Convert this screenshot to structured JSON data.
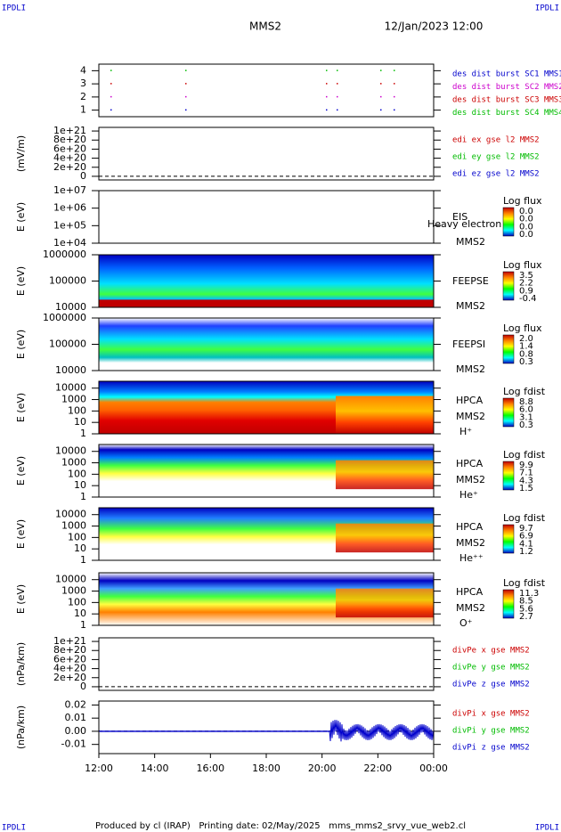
{
  "title": "MMS2",
  "date": "12/Jan/2023 12:00",
  "corner_labels": [
    "IPDLI",
    "IPDLI",
    "IPDLI",
    "IPDLI"
  ],
  "footer": "Produced by cl (IRAP)   Printing date: 02/May/2025   mms_mms2_srvy_vue_web2.cl",
  "chart_data": [
    {
      "type": "dots",
      "ylim": [
        0.5,
        4.5
      ],
      "yticks": [
        1,
        2,
        3,
        4
      ],
      "series": [
        {
          "name": "des dist burst SC1 MMS1",
          "color": "#0000cc"
        },
        {
          "name": "des dist burst SC2 MMS2",
          "color": "#cc00cc"
        },
        {
          "name": "des dist burst SC3 MMS3",
          "color": "#cc0000"
        },
        {
          "name": "des dist burst SC4 MMS4",
          "color": "#00bb00"
        }
      ]
    },
    {
      "type": "line",
      "ylabel": "(mV/m)",
      "ylim": [
        -8e+19,
        1.08e+21
      ],
      "yticks": [
        0,
        {
          "value": 2e+20,
          "label": "2e+20"
        },
        {
          "value": 4e+20,
          "label": "4e+20"
        },
        {
          "value": 6e+20,
          "label": "6e+20"
        },
        {
          "value": 8e+20,
          "label": "8e+20"
        },
        {
          "value": 1e+21,
          "label": "1e+21"
        }
      ],
      "series": [
        {
          "name": "edi ex gse l2 MMS2",
          "color": "#cc0000"
        },
        {
          "name": "edi ey gse l2 MMS2",
          "color": "#00bb00"
        },
        {
          "name": "edi ez gse l2 MMS2",
          "color": "#0000cc"
        }
      ]
    },
    {
      "type": "spectrogram",
      "ylabel": "E (eV)",
      "log": true,
      "ylim": [
        10000,
        10000000
      ],
      "yticks": [
        {
          "value": 10000,
          "label": "1e+04"
        },
        {
          "value": 100000,
          "label": "1e+05"
        },
        {
          "value": 1000000,
          "label": "1e+06"
        },
        {
          "value": 10000000,
          "label": "1e+07"
        }
      ],
      "instrument": "EIS",
      "spacecraft": "MMS2",
      "note": "Heavy electron to",
      "colorbar": {
        "title": "Log flux",
        "ticks": [
          "0.0",
          "0.0",
          "0.0",
          "0.0"
        ]
      }
    },
    {
      "type": "spectrogram",
      "ylabel": "E (eV)",
      "log": true,
      "ylim": [
        10000,
        1000000
      ],
      "yticks": [
        10000,
        100000,
        1000000
      ],
      "instrument": "FEEPSE",
      "spacecraft": "MMS2",
      "colorbar": {
        "title": "Log flux",
        "ticks": [
          "3.5",
          "2.2",
          "0.9",
          "-0.4"
        ]
      }
    },
    {
      "type": "spectrogram",
      "ylabel": "E (eV)",
      "log": true,
      "ylim": [
        10000,
        1000000
      ],
      "yticks": [
        10000,
        100000,
        1000000
      ],
      "instrument": "FEEPSI",
      "spacecraft": "MMS2",
      "colorbar": {
        "title": "Log flux",
        "ticks": [
          "2.0",
          "1.4",
          "0.8",
          "0.3"
        ]
      }
    },
    {
      "type": "spectrogram",
      "ylabel": "E (eV)",
      "log": true,
      "ylim": [
        1,
        40000
      ],
      "yticks": [
        1,
        10,
        100,
        1000,
        10000
      ],
      "instrument": "HPCA",
      "spacecraft": "MMS2",
      "ion": "H⁺",
      "colorbar": {
        "title": "Log fdist",
        "ticks": [
          "8.8",
          "6.0",
          "3.1",
          "0.3"
        ]
      }
    },
    {
      "type": "spectrogram",
      "ylabel": "E (eV)",
      "log": true,
      "ylim": [
        1,
        40000
      ],
      "yticks": [
        1,
        10,
        100,
        1000,
        10000
      ],
      "instrument": "HPCA",
      "spacecraft": "MMS2",
      "ion": "He⁺",
      "colorbar": {
        "title": "Log fdist",
        "ticks": [
          "9.9",
          "7.1",
          "4.3",
          "1.5"
        ]
      }
    },
    {
      "type": "spectrogram",
      "ylabel": "E (eV)",
      "log": true,
      "ylim": [
        1,
        40000
      ],
      "yticks": [
        1,
        10,
        100,
        1000,
        10000
      ],
      "instrument": "HPCA",
      "spacecraft": "MMS2",
      "ion": "He⁺⁺",
      "colorbar": {
        "title": "Log fdist",
        "ticks": [
          "9.7",
          "6.9",
          "4.1",
          "1.2"
        ]
      }
    },
    {
      "type": "spectrogram",
      "ylabel": "E (eV)",
      "log": true,
      "ylim": [
        1,
        40000
      ],
      "yticks": [
        1,
        10,
        100,
        1000,
        10000
      ],
      "instrument": "HPCA",
      "spacecraft": "MMS2",
      "ion": "O⁺",
      "colorbar": {
        "title": "Log fdist",
        "ticks": [
          "11.3",
          "8.5",
          "5.6",
          "2.7"
        ]
      }
    },
    {
      "type": "line",
      "ylabel": "(nPa/km)",
      "ylim": [
        -8e+19,
        1.08e+21
      ],
      "yticks": [
        0,
        {
          "value": 2e+20,
          "label": "2e+20"
        },
        {
          "value": 4e+20,
          "label": "4e+20"
        },
        {
          "value": 6e+20,
          "label": "6e+20"
        },
        {
          "value": 8e+20,
          "label": "8e+20"
        },
        {
          "value": 1e+21,
          "label": "1e+21"
        }
      ],
      "series": [
        {
          "name": "divPe x gse MMS2",
          "color": "#cc0000"
        },
        {
          "name": "divPe y gse MMS2",
          "color": "#00bb00"
        },
        {
          "name": "divPe z gse MMS2",
          "color": "#0000cc"
        }
      ]
    },
    {
      "type": "line",
      "ylabel": "(nPa/km)",
      "ylim": [
        -0.017,
        0.023
      ],
      "yticks": [
        -0.01,
        {
          "value": 0,
          "label": "0.00"
        },
        0.01,
        0.02
      ],
      "series": [
        {
          "name": "divPi x gse MMS2",
          "color": "#cc0000"
        },
        {
          "name": "divPi y gse MMS2",
          "color": "#00bb00"
        },
        {
          "name": "divPi z gse MMS2",
          "color": "#0000cc"
        }
      ],
      "xlim": [
        12,
        24
      ],
      "xticks": [
        {
          "value": 12,
          "label": "12:00"
        },
        {
          "value": 14,
          "label": "14:00"
        },
        {
          "value": 16,
          "label": "16:00"
        },
        {
          "value": 18,
          "label": "18:00"
        },
        {
          "value": 20,
          "label": "20:00"
        },
        {
          "value": 22,
          "label": "22:00"
        },
        {
          "value": 24,
          "label": "00:00"
        }
      ]
    }
  ]
}
